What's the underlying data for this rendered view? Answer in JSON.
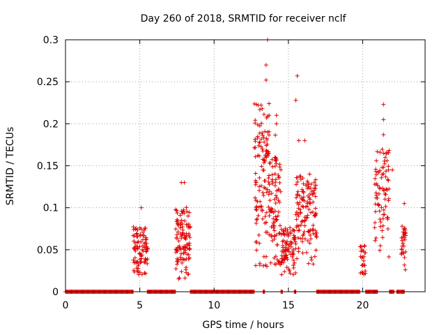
{
  "chart_data": {
    "type": "scatter",
    "title": "Day 260 of 2018, SRMTID for receiver nclf",
    "xlabel": "GPS time / hours",
    "ylabel": "SRMTID / TECUs",
    "xlim": [
      0,
      24.2
    ],
    "ylim": [
      0,
      0.3
    ],
    "x_ticks": [
      0,
      5,
      10,
      15,
      20
    ],
    "x_tick_labels": [
      "0",
      "5",
      "10",
      "15",
      "20"
    ],
    "y_ticks": [
      0,
      0.05,
      0.1,
      0.15,
      0.2,
      0.25,
      0.3
    ],
    "y_tick_labels": [
      "0",
      "0.05",
      "0.1",
      "0.15",
      "0.2",
      "0.25",
      "0.3"
    ],
    "grid": true,
    "marker": "+",
    "marker_color": "#e00000",
    "series": [
      {
        "name": "SRMTID",
        "zero_segments": [
          [
            0.0,
            4.55
          ],
          [
            5.5,
            7.4
          ],
          [
            8.4,
            12.7
          ],
          [
            13.3,
            13.4
          ],
          [
            14.5,
            14.6
          ],
          [
            15.4,
            15.5
          ],
          [
            16.9,
            19.8
          ],
          [
            20.2,
            21.0
          ],
          [
            21.8,
            22.1
          ],
          [
            22.3,
            22.8
          ]
        ],
        "clusters": [
          {
            "x_range": [
              4.55,
              5.55
            ],
            "y_range": [
              0.02,
              0.1
            ],
            "count": 90
          },
          {
            "x_range": [
              7.4,
              8.4
            ],
            "y_range": [
              0.015,
              0.13
            ],
            "count": 110
          },
          {
            "x_range": [
              12.7,
              13.7
            ],
            "y_range": [
              0.03,
              0.3
            ],
            "count": 120
          },
          {
            "x_range": [
              13.7,
              14.5
            ],
            "y_range": [
              0.03,
              0.21
            ],
            "count": 90
          },
          {
            "x_range": [
              14.5,
              15.5
            ],
            "y_range": [
              0.02,
              0.1
            ],
            "count": 90
          },
          {
            "x_range": [
              15.5,
              16.9
            ],
            "y_range": [
              0.03,
              0.18
            ],
            "count": 130
          },
          {
            "x_range": [
              19.8,
              20.2
            ],
            "y_range": [
              0.02,
              0.07
            ],
            "count": 25
          },
          {
            "x_range": [
              20.8,
              21.8
            ],
            "y_range": [
              0.04,
              0.22
            ],
            "count": 80
          },
          {
            "x_range": [
              22.6,
              22.95
            ],
            "y_range": [
              0.025,
              0.105
            ],
            "count": 30
          }
        ],
        "peaks": [
          {
            "x": 13.6,
            "y": 0.3
          },
          {
            "x": 13.5,
            "y": 0.27
          },
          {
            "x": 13.5,
            "y": 0.252
          },
          {
            "x": 15.6,
            "y": 0.257
          },
          {
            "x": 15.5,
            "y": 0.228
          },
          {
            "x": 13.7,
            "y": 0.224
          },
          {
            "x": 21.4,
            "y": 0.223
          },
          {
            "x": 13.7,
            "y": 0.21
          },
          {
            "x": 14.2,
            "y": 0.21
          },
          {
            "x": 21.4,
            "y": 0.205
          },
          {
            "x": 14.2,
            "y": 0.2
          },
          {
            "x": 13.6,
            "y": 0.19
          },
          {
            "x": 21.4,
            "y": 0.187
          },
          {
            "x": 16.1,
            "y": 0.18
          },
          {
            "x": 15.7,
            "y": 0.18
          },
          {
            "x": 21.4,
            "y": 0.165
          },
          {
            "x": 14.1,
            "y": 0.16
          },
          {
            "x": 22.0,
            "y": 0.145
          },
          {
            "x": 7.8,
            "y": 0.13
          },
          {
            "x": 8.0,
            "y": 0.13
          },
          {
            "x": 5.1,
            "y": 0.1
          },
          {
            "x": 22.8,
            "y": 0.105
          }
        ]
      }
    ]
  }
}
